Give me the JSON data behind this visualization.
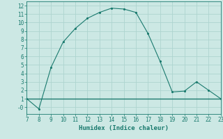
{
  "x": [
    7,
    8,
    9,
    10,
    11,
    12,
    13,
    14,
    15,
    16,
    17,
    18,
    19,
    20,
    21,
    22,
    23
  ],
  "y": [
    1,
    -0.2,
    4.7,
    7.7,
    9.3,
    10.5,
    11.2,
    11.7,
    11.6,
    11.2,
    8.7,
    5.4,
    1.8,
    1.9,
    3.0,
    2.0,
    1.0
  ],
  "xlim": [
    7,
    23
  ],
  "ylim": [
    -0.8,
    12.5
  ],
  "xticks": [
    7,
    8,
    9,
    10,
    11,
    12,
    13,
    14,
    15,
    16,
    17,
    18,
    19,
    20,
    21,
    22,
    23
  ],
  "yticks": [
    0,
    1,
    2,
    3,
    4,
    5,
    6,
    7,
    8,
    9,
    10,
    11,
    12
  ],
  "xlabel": "Humidex (Indice chaleur)",
  "line_color": "#1a7a6e",
  "marker_color": "#1a7a6e",
  "bg_color": "#cce8e4",
  "grid_color": "#aed4cf",
  "hline_y": 1,
  "hline_xstart": 7,
  "hline_xend": 23,
  "axis_fontsize": 5.5,
  "label_fontsize": 6.5
}
